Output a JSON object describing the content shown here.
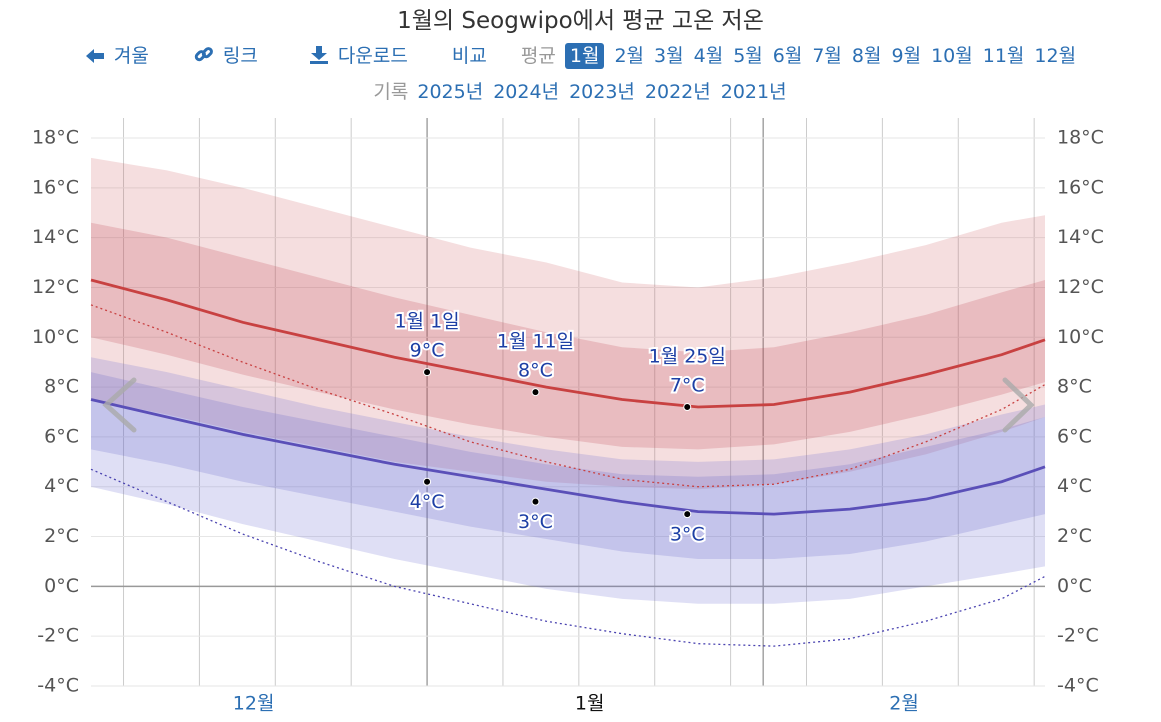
{
  "chart_data": {
    "type": "line",
    "title": "1월의 Seogwipo에서 평균 고온 저온",
    "nav": {
      "season": "겨울",
      "link": "링크",
      "download": "다운로드",
      "compare": "비교",
      "average_label": "평균",
      "months": [
        "1월",
        "2월",
        "3월",
        "4월",
        "5월",
        "6월",
        "7월",
        "8월",
        "9월",
        "10월",
        "11월",
        "12월"
      ],
      "active_month": 0,
      "record_label": "기록",
      "years": [
        "2025년",
        "2024년",
        "2023년",
        "2022년",
        "2021년"
      ]
    },
    "x": [
      0,
      7,
      14,
      21,
      28,
      35,
      42,
      49,
      56,
      63,
      70,
      77,
      84,
      88
    ],
    "xlim": [
      0,
      88
    ],
    "xticks": [
      {
        "value": 15,
        "label": "12월"
      },
      {
        "value": 46,
        "label": "1월"
      },
      {
        "value": 75,
        "label": "2월"
      }
    ],
    "active_xtick": 1,
    "xgrid": [
      3,
      10,
      17,
      24,
      38,
      45,
      52,
      59,
      66,
      73,
      80,
      87
    ],
    "month_lines": [
      31,
      62
    ],
    "ylim": [
      -4,
      18
    ],
    "yticks": [
      {
        "value": -4,
        "label": "-4°C"
      },
      {
        "value": -2,
        "label": "-2°C"
      },
      {
        "value": 0,
        "label": "0°C"
      },
      {
        "value": 2,
        "label": "2°C"
      },
      {
        "value": 4,
        "label": "4°C"
      },
      {
        "value": 6,
        "label": "6°C"
      },
      {
        "value": 8,
        "label": "8°C"
      },
      {
        "value": 10,
        "label": "10°C"
      },
      {
        "value": 12,
        "label": "12°C"
      },
      {
        "value": 14,
        "label": "14°C"
      },
      {
        "value": 16,
        "label": "16°C"
      },
      {
        "value": 18,
        "label": "18°C"
      }
    ],
    "grid": true,
    "bands": [
      {
        "upper": [
          17.2,
          16.7,
          16.0,
          15.2,
          14.4,
          13.6,
          13.0,
          12.2,
          12.0,
          12.4,
          13.0,
          13.7,
          14.6,
          14.9
        ],
        "lower": [
          7.5,
          6.9,
          6.2,
          5.6,
          5.0,
          4.6,
          4.2,
          4.0,
          3.9,
          4.1,
          4.6,
          5.3,
          6.2,
          6.8
        ],
        "color": "rgba(205,90,95,0.2)"
      },
      {
        "upper": [
          14.6,
          14.0,
          13.2,
          12.4,
          11.6,
          10.9,
          10.2,
          9.6,
          9.4,
          9.6,
          10.2,
          10.9,
          11.8,
          12.3
        ],
        "lower": [
          10.0,
          9.3,
          8.5,
          7.8,
          7.1,
          6.5,
          6.0,
          5.6,
          5.5,
          5.7,
          6.2,
          6.9,
          7.7,
          8.2
        ],
        "color": "rgba(190,70,80,0.22)"
      },
      {
        "upper": [
          9.2,
          8.6,
          7.9,
          7.2,
          6.6,
          6.0,
          5.5,
          5.1,
          5.0,
          5.1,
          5.5,
          6.1,
          6.9,
          7.3
        ],
        "lower": [
          4.0,
          3.3,
          2.5,
          1.8,
          1.1,
          0.5,
          -0.1,
          -0.5,
          -0.7,
          -0.7,
          -0.5,
          0.0,
          0.5,
          0.8
        ],
        "color": "rgba(110,110,210,0.22)"
      },
      {
        "upper": [
          8.6,
          7.9,
          7.2,
          6.6,
          6.0,
          5.4,
          4.9,
          4.5,
          4.4,
          4.5,
          4.9,
          5.6,
          6.3,
          6.8
        ],
        "lower": [
          5.5,
          4.9,
          4.2,
          3.6,
          3.0,
          2.4,
          1.9,
          1.4,
          1.1,
          1.1,
          1.3,
          1.8,
          2.5,
          2.9
        ],
        "color": "rgba(100,100,200,0.22)"
      }
    ],
    "series": [
      {
        "values": [
          11.3,
          10.2,
          9.0,
          7.9,
          6.9,
          5.8,
          5.0,
          4.3,
          4.0,
          4.1,
          4.7,
          5.8,
          7.1,
          8.1
        ],
        "color": "#c84141",
        "dashed": true
      },
      {
        "values": [
          4.7,
          3.4,
          2.1,
          1.0,
          0.0,
          -0.7,
          -1.4,
          -1.9,
          -2.3,
          -2.4,
          -2.1,
          -1.4,
          -0.5,
          0.4
        ],
        "color": "#4a43b0",
        "dashed": true
      },
      {
        "values": [
          12.3,
          11.5,
          10.6,
          9.9,
          9.2,
          8.6,
          8.0,
          7.5,
          7.2,
          7.3,
          7.8,
          8.5,
          9.3,
          9.9
        ],
        "color": "#c84141",
        "dashed": false
      },
      {
        "values": [
          7.5,
          6.8,
          6.1,
          5.5,
          4.9,
          4.4,
          3.9,
          3.4,
          3.0,
          2.9,
          3.1,
          3.5,
          4.2,
          4.8
        ],
        "color": "#5a4fb8",
        "dashed": false
      }
    ],
    "annotations": [
      {
        "label": "1월 1일",
        "x": 31,
        "high": 8.6,
        "high_label": "9°C",
        "low": 4.2,
        "low_label": "4°C"
      },
      {
        "label": "1월 11일",
        "x": 41,
        "high": 7.8,
        "high_label": "8°C",
        "low": 3.4,
        "low_label": "3°C"
      },
      {
        "label": "1월 25일",
        "x": 55,
        "high": 7.2,
        "high_label": "7°C",
        "low": 2.9,
        "low_label": "3°C"
      }
    ]
  }
}
